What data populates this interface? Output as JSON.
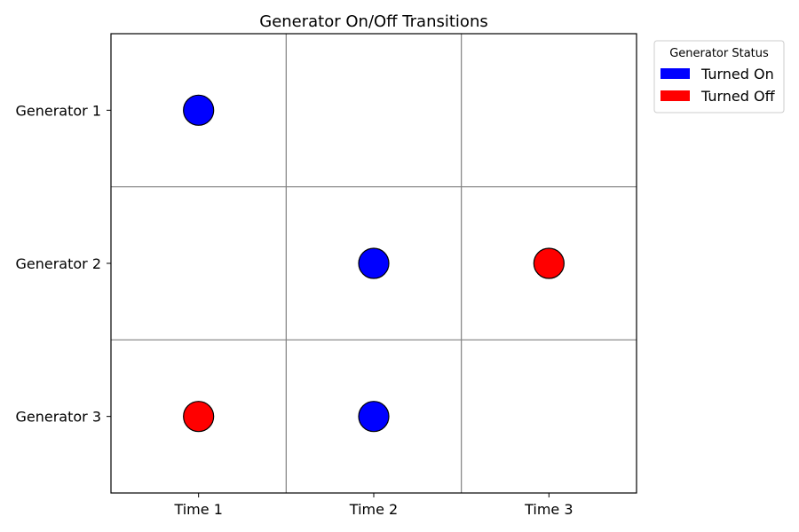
{
  "chart_data": {
    "type": "scatter",
    "title": "Generator On/Off Transitions",
    "xlabel": "",
    "ylabel": "",
    "x_categories": [
      "Time 1",
      "Time 2",
      "Time 3"
    ],
    "y_categories": [
      "Generator 1",
      "Generator 2",
      "Generator 3"
    ],
    "grid": true,
    "legend": {
      "title": "Generator Status",
      "placement": "outside-top-right",
      "entries": [
        {
          "label": "Turned On",
          "color": "#0000ff"
        },
        {
          "label": "Turned Off",
          "color": "#ff0000"
        }
      ]
    },
    "points": [
      {
        "generator": "Generator 1",
        "time": "Time 1",
        "status": "Turned On"
      },
      {
        "generator": "Generator 2",
        "time": "Time 2",
        "status": "Turned On"
      },
      {
        "generator": "Generator 2",
        "time": "Time 3",
        "status": "Turned Off"
      },
      {
        "generator": "Generator 3",
        "time": "Time 1",
        "status": "Turned Off"
      },
      {
        "generator": "Generator 3",
        "time": "Time 2",
        "status": "Turned On"
      }
    ]
  }
}
